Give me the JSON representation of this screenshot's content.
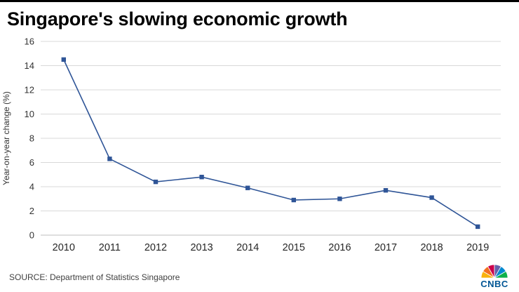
{
  "page": {
    "source": "SOURCE: Department of Statistics Singapore",
    "logo": {
      "text": "CNBC",
      "wordmark_color": "#005594",
      "feather_colors": [
        "#F9B20D",
        "#F37021",
        "#CC004C",
        "#6460AA",
        "#0089D0",
        "#0DB14B"
      ]
    }
  },
  "chart_data": {
    "type": "line",
    "title": "Singapore's slowing economic growth",
    "categories": [
      "2010",
      "2011",
      "2012",
      "2013",
      "2014",
      "2015",
      "2016",
      "2017",
      "2018",
      "2019"
    ],
    "series": [
      {
        "name": "Year-on-year change (%)",
        "values": [
          14.5,
          6.3,
          4.4,
          4.8,
          3.9,
          2.9,
          3.0,
          3.7,
          3.1,
          0.7
        ]
      }
    ],
    "xlabel": "",
    "ylabel": "Year-on-year change (%)",
    "ylim": [
      0,
      16
    ],
    "ytick_step": 2,
    "grid": "horizontal",
    "gridline_color": "#d9d9d9",
    "axis_line_color": "#bfbfbf",
    "legend": "none",
    "line_color": "#2f5597",
    "marker": "square"
  }
}
